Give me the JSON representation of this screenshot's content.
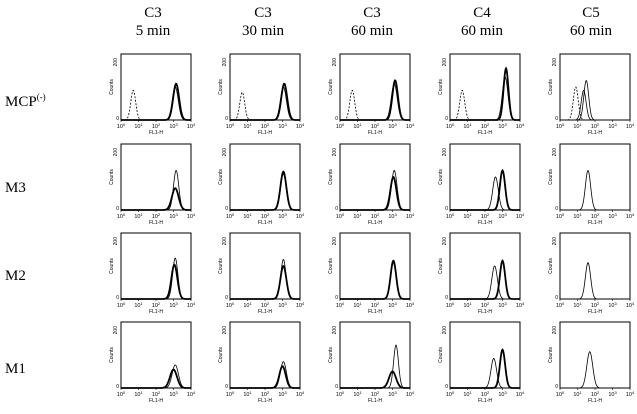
{
  "columns": [
    {
      "reagent": "C3",
      "time": "5 min"
    },
    {
      "reagent": "C3",
      "time": "30 min"
    },
    {
      "reagent": "C3",
      "time": "60  min"
    },
    {
      "reagent": "C4",
      "time": "60 min"
    },
    {
      "reagent": "C5",
      "time": "60 min"
    }
  ],
  "rows": [
    {
      "label": "MCP",
      "label_sup": "(-)"
    },
    {
      "label": "M3",
      "label_sup": ""
    },
    {
      "label": "M2",
      "label_sup": ""
    },
    {
      "label": "M1",
      "label_sup": ""
    }
  ],
  "chart_data": {
    "type": "histogram-grid",
    "xlabel": "FL1-H",
    "ylabel": "Counts",
    "x_scale": "log",
    "xlim": [
      1,
      10000
    ],
    "x_ticks": [
      "10^0",
      "10^1",
      "10^2",
      "10^3",
      "10^4"
    ],
    "ylim": [
      0,
      200
    ],
    "y_ticks": [
      "0",
      "200"
    ],
    "panels": [
      [
        {
          "traces": [
            {
              "style": "dashed",
              "peak_log": 0.7,
              "width": 0.14,
              "height": 0.45
            },
            {
              "style": "thick",
              "peak_log": 3.15,
              "width": 0.17,
              "height": 0.55
            },
            {
              "style": "thin",
              "peak_log": 3.1,
              "width": 0.17,
              "height": 0.5
            }
          ]
        },
        {
          "traces": [
            {
              "style": "dashed",
              "peak_log": 0.7,
              "width": 0.14,
              "height": 0.42
            },
            {
              "style": "thick",
              "peak_log": 3.1,
              "width": 0.17,
              "height": 0.55
            },
            {
              "style": "thin",
              "peak_log": 3.05,
              "width": 0.17,
              "height": 0.5
            }
          ]
        },
        {
          "traces": [
            {
              "style": "dashed",
              "peak_log": 0.7,
              "width": 0.14,
              "height": 0.45
            },
            {
              "style": "thick",
              "peak_log": 3.15,
              "width": 0.16,
              "height": 0.6
            },
            {
              "style": "thin",
              "peak_log": 3.1,
              "width": 0.17,
              "height": 0.55
            }
          ]
        },
        {
          "traces": [
            {
              "style": "dashed",
              "peak_log": 0.7,
              "width": 0.14,
              "height": 0.45
            },
            {
              "style": "thick",
              "peak_log": 3.2,
              "width": 0.14,
              "height": 0.78
            },
            {
              "style": "thin",
              "peak_log": 3.15,
              "width": 0.16,
              "height": 0.65
            }
          ]
        },
        {
          "traces": [
            {
              "style": "dashed",
              "peak_log": 0.9,
              "width": 0.14,
              "height": 0.5
            },
            {
              "style": "thin",
              "peak_log": 1.5,
              "width": 0.14,
              "height": 0.6
            },
            {
              "style": "thin",
              "peak_log": 1.35,
              "width": 0.14,
              "height": 0.45
            }
          ]
        }
      ],
      [
        {
          "traces": [
            {
              "style": "thin",
              "peak_log": 3.15,
              "width": 0.15,
              "height": 0.6
            },
            {
              "style": "thick",
              "peak_log": 3.1,
              "width": 0.19,
              "height": 0.33
            }
          ]
        },
        {
          "traces": [
            {
              "style": "thin",
              "peak_log": 3.05,
              "width": 0.16,
              "height": 0.55
            },
            {
              "style": "thick",
              "peak_log": 3.05,
              "width": 0.17,
              "height": 0.58
            }
          ]
        },
        {
          "traces": [
            {
              "style": "thin",
              "peak_log": 3.1,
              "width": 0.16,
              "height": 0.6
            },
            {
              "style": "thick",
              "peak_log": 3.05,
              "width": 0.17,
              "height": 0.5
            }
          ]
        },
        {
          "traces": [
            {
              "style": "thin",
              "peak_log": 2.6,
              "width": 0.16,
              "height": 0.5
            },
            {
              "style": "thick",
              "peak_log": 3.0,
              "width": 0.15,
              "height": 0.6
            }
          ]
        },
        {
          "traces": [
            {
              "style": "thin",
              "peak_log": 1.6,
              "width": 0.15,
              "height": 0.6
            }
          ]
        }
      ],
      [
        {
          "traces": [
            {
              "style": "thin",
              "peak_log": 3.1,
              "width": 0.15,
              "height": 0.62
            },
            {
              "style": "thick",
              "peak_log": 3.05,
              "width": 0.17,
              "height": 0.52
            }
          ]
        },
        {
          "traces": [
            {
              "style": "thin",
              "peak_log": 3.05,
              "width": 0.15,
              "height": 0.6
            },
            {
              "style": "thick",
              "peak_log": 3.05,
              "width": 0.17,
              "height": 0.5
            }
          ]
        },
        {
          "traces": [
            {
              "style": "thin",
              "peak_log": 3.05,
              "width": 0.16,
              "height": 0.55
            },
            {
              "style": "thick",
              "peak_log": 3.05,
              "width": 0.16,
              "height": 0.58
            }
          ]
        },
        {
          "traces": [
            {
              "style": "thin",
              "peak_log": 2.55,
              "width": 0.16,
              "height": 0.5
            },
            {
              "style": "thick",
              "peak_log": 3.0,
              "width": 0.15,
              "height": 0.58
            }
          ]
        },
        {
          "traces": [
            {
              "style": "thin",
              "peak_log": 1.6,
              "width": 0.15,
              "height": 0.55
            }
          ]
        }
      ],
      [
        {
          "traces": [
            {
              "style": "thin",
              "peak_log": 3.1,
              "width": 0.18,
              "height": 0.35
            },
            {
              "style": "thick",
              "peak_log": 3.0,
              "width": 0.2,
              "height": 0.28
            }
          ]
        },
        {
          "traces": [
            {
              "style": "thin",
              "peak_log": 3.05,
              "width": 0.17,
              "height": 0.4
            },
            {
              "style": "thick",
              "peak_log": 3.0,
              "width": 0.18,
              "height": 0.33
            }
          ]
        },
        {
          "traces": [
            {
              "style": "thin",
              "peak_log": 3.2,
              "width": 0.14,
              "height": 0.65
            },
            {
              "style": "thick",
              "peak_log": 3.0,
              "width": 0.2,
              "height": 0.25
            }
          ]
        },
        {
          "traces": [
            {
              "style": "thin",
              "peak_log": 2.5,
              "width": 0.16,
              "height": 0.45
            },
            {
              "style": "thick",
              "peak_log": 3.0,
              "width": 0.15,
              "height": 0.58
            }
          ]
        },
        {
          "traces": [
            {
              "style": "thin",
              "peak_log": 1.7,
              "width": 0.17,
              "height": 0.55
            }
          ]
        }
      ]
    ]
  }
}
